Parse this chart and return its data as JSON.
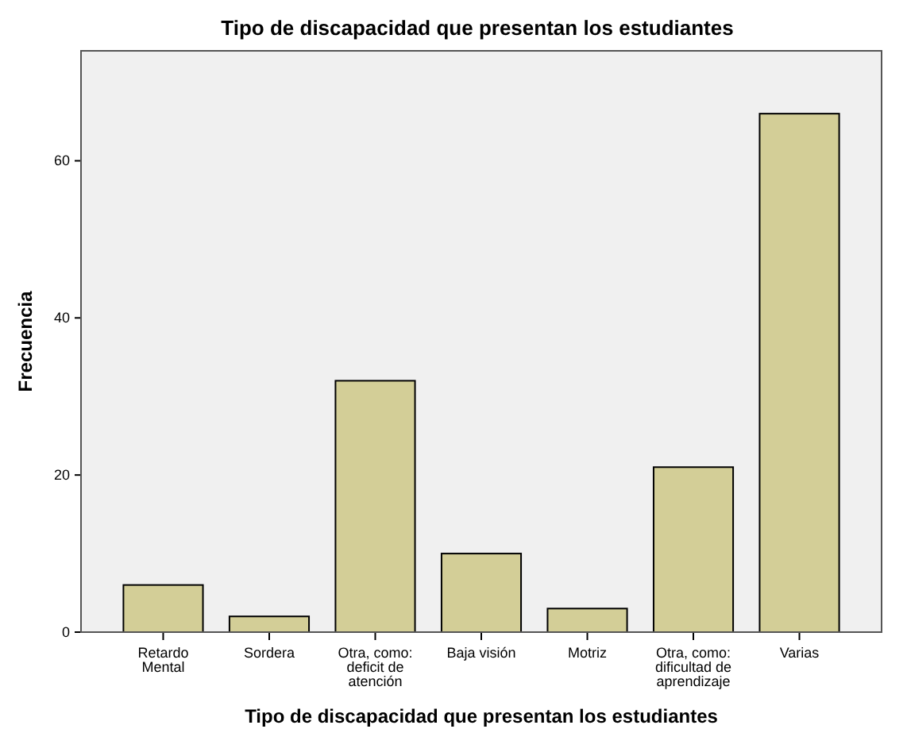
{
  "chart_data": {
    "type": "bar",
    "title": "Tipo de discapacidad que presentan los estudiantes",
    "xlabel": "Tipo de discapacidad que presentan los estudiantes",
    "ylabel": "Frecuencia",
    "categories": [
      "Retardo Mental",
      "Sordera",
      "Otra, como: deficit de atención",
      "Baja visión",
      "Motriz",
      "Otra, como: dificultad de aprendizaje",
      "Varias"
    ],
    "values": [
      6,
      2,
      32,
      10,
      3,
      21,
      66
    ],
    "color": "#d3ce97",
    "ylim": [
      0,
      74
    ],
    "yticks": [
      0,
      20,
      40,
      60
    ],
    "grid": false
  }
}
